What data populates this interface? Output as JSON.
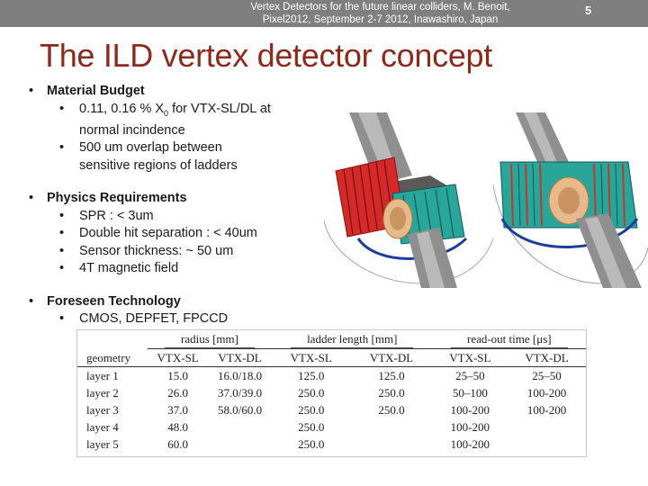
{
  "header": {
    "line1": "Vertex Detectors for the future linear colliders, M. Benoit,",
    "line2": "Pixel2012, September 2-7 2012,  Inawashiro, Japan",
    "slide_number": "5"
  },
  "title": "The ILD vertex detector concept",
  "bullets": {
    "material": {
      "heading": "Material Budget",
      "item1_a": "0.11, 0.16 % X",
      "item1_sub": "0",
      "item1_b": " for VTX-SL/DL at",
      "item1_c": "normal incindence",
      "item2_a": "500 um overlap between",
      "item2_b": "sensitive regions of ladders"
    },
    "physics": {
      "heading": "Physics Requirements",
      "items": [
        "SPR : < 3um",
        "Double hit separation : < 40um",
        "Sensor thickness: ~ 50 um",
        "4T magnetic field"
      ]
    },
    "tech": {
      "heading": "Foreseen Technology",
      "items": [
        "CMOS, DEPFET, FPCCD"
      ]
    }
  },
  "table": {
    "group_headers": [
      "radius [mm]",
      "ladder length [mm]",
      "read-out time [μs]"
    ],
    "columns": [
      "geometry",
      "VTX-SL",
      "VTX-DL",
      "VTX-SL",
      "VTX-DL",
      "VTX-SL",
      "VTX-DL"
    ],
    "rows": [
      [
        "layer 1",
        "15.0",
        "16.0/18.0",
        "125.0",
        "125.0",
        "25–50",
        "25–50"
      ],
      [
        "layer 2",
        "26.0",
        "37.0/39.0",
        "250.0",
        "250.0",
        "50–100",
        "100-200"
      ],
      [
        "layer 3",
        "37.0",
        "58.0/60.0",
        "250.0",
        "250.0",
        "100-200",
        "100-200"
      ],
      [
        "layer 4",
        "48.0",
        "",
        "250.0",
        "",
        "100-200",
        ""
      ],
      [
        "layer 5",
        "60.0",
        "",
        "250.0",
        "",
        "100-200",
        ""
      ]
    ]
  },
  "colors": {
    "title": "#8b2a1d",
    "header_bar": "#7f7f7f",
    "ladder_red": "#d42a2a",
    "ladder_teal": "#2aa59a",
    "beam_pipe": "#8f8f8f",
    "flange": "#e8b98a"
  },
  "figures": [
    "vtx-sl-render",
    "vtx-dl-render"
  ]
}
